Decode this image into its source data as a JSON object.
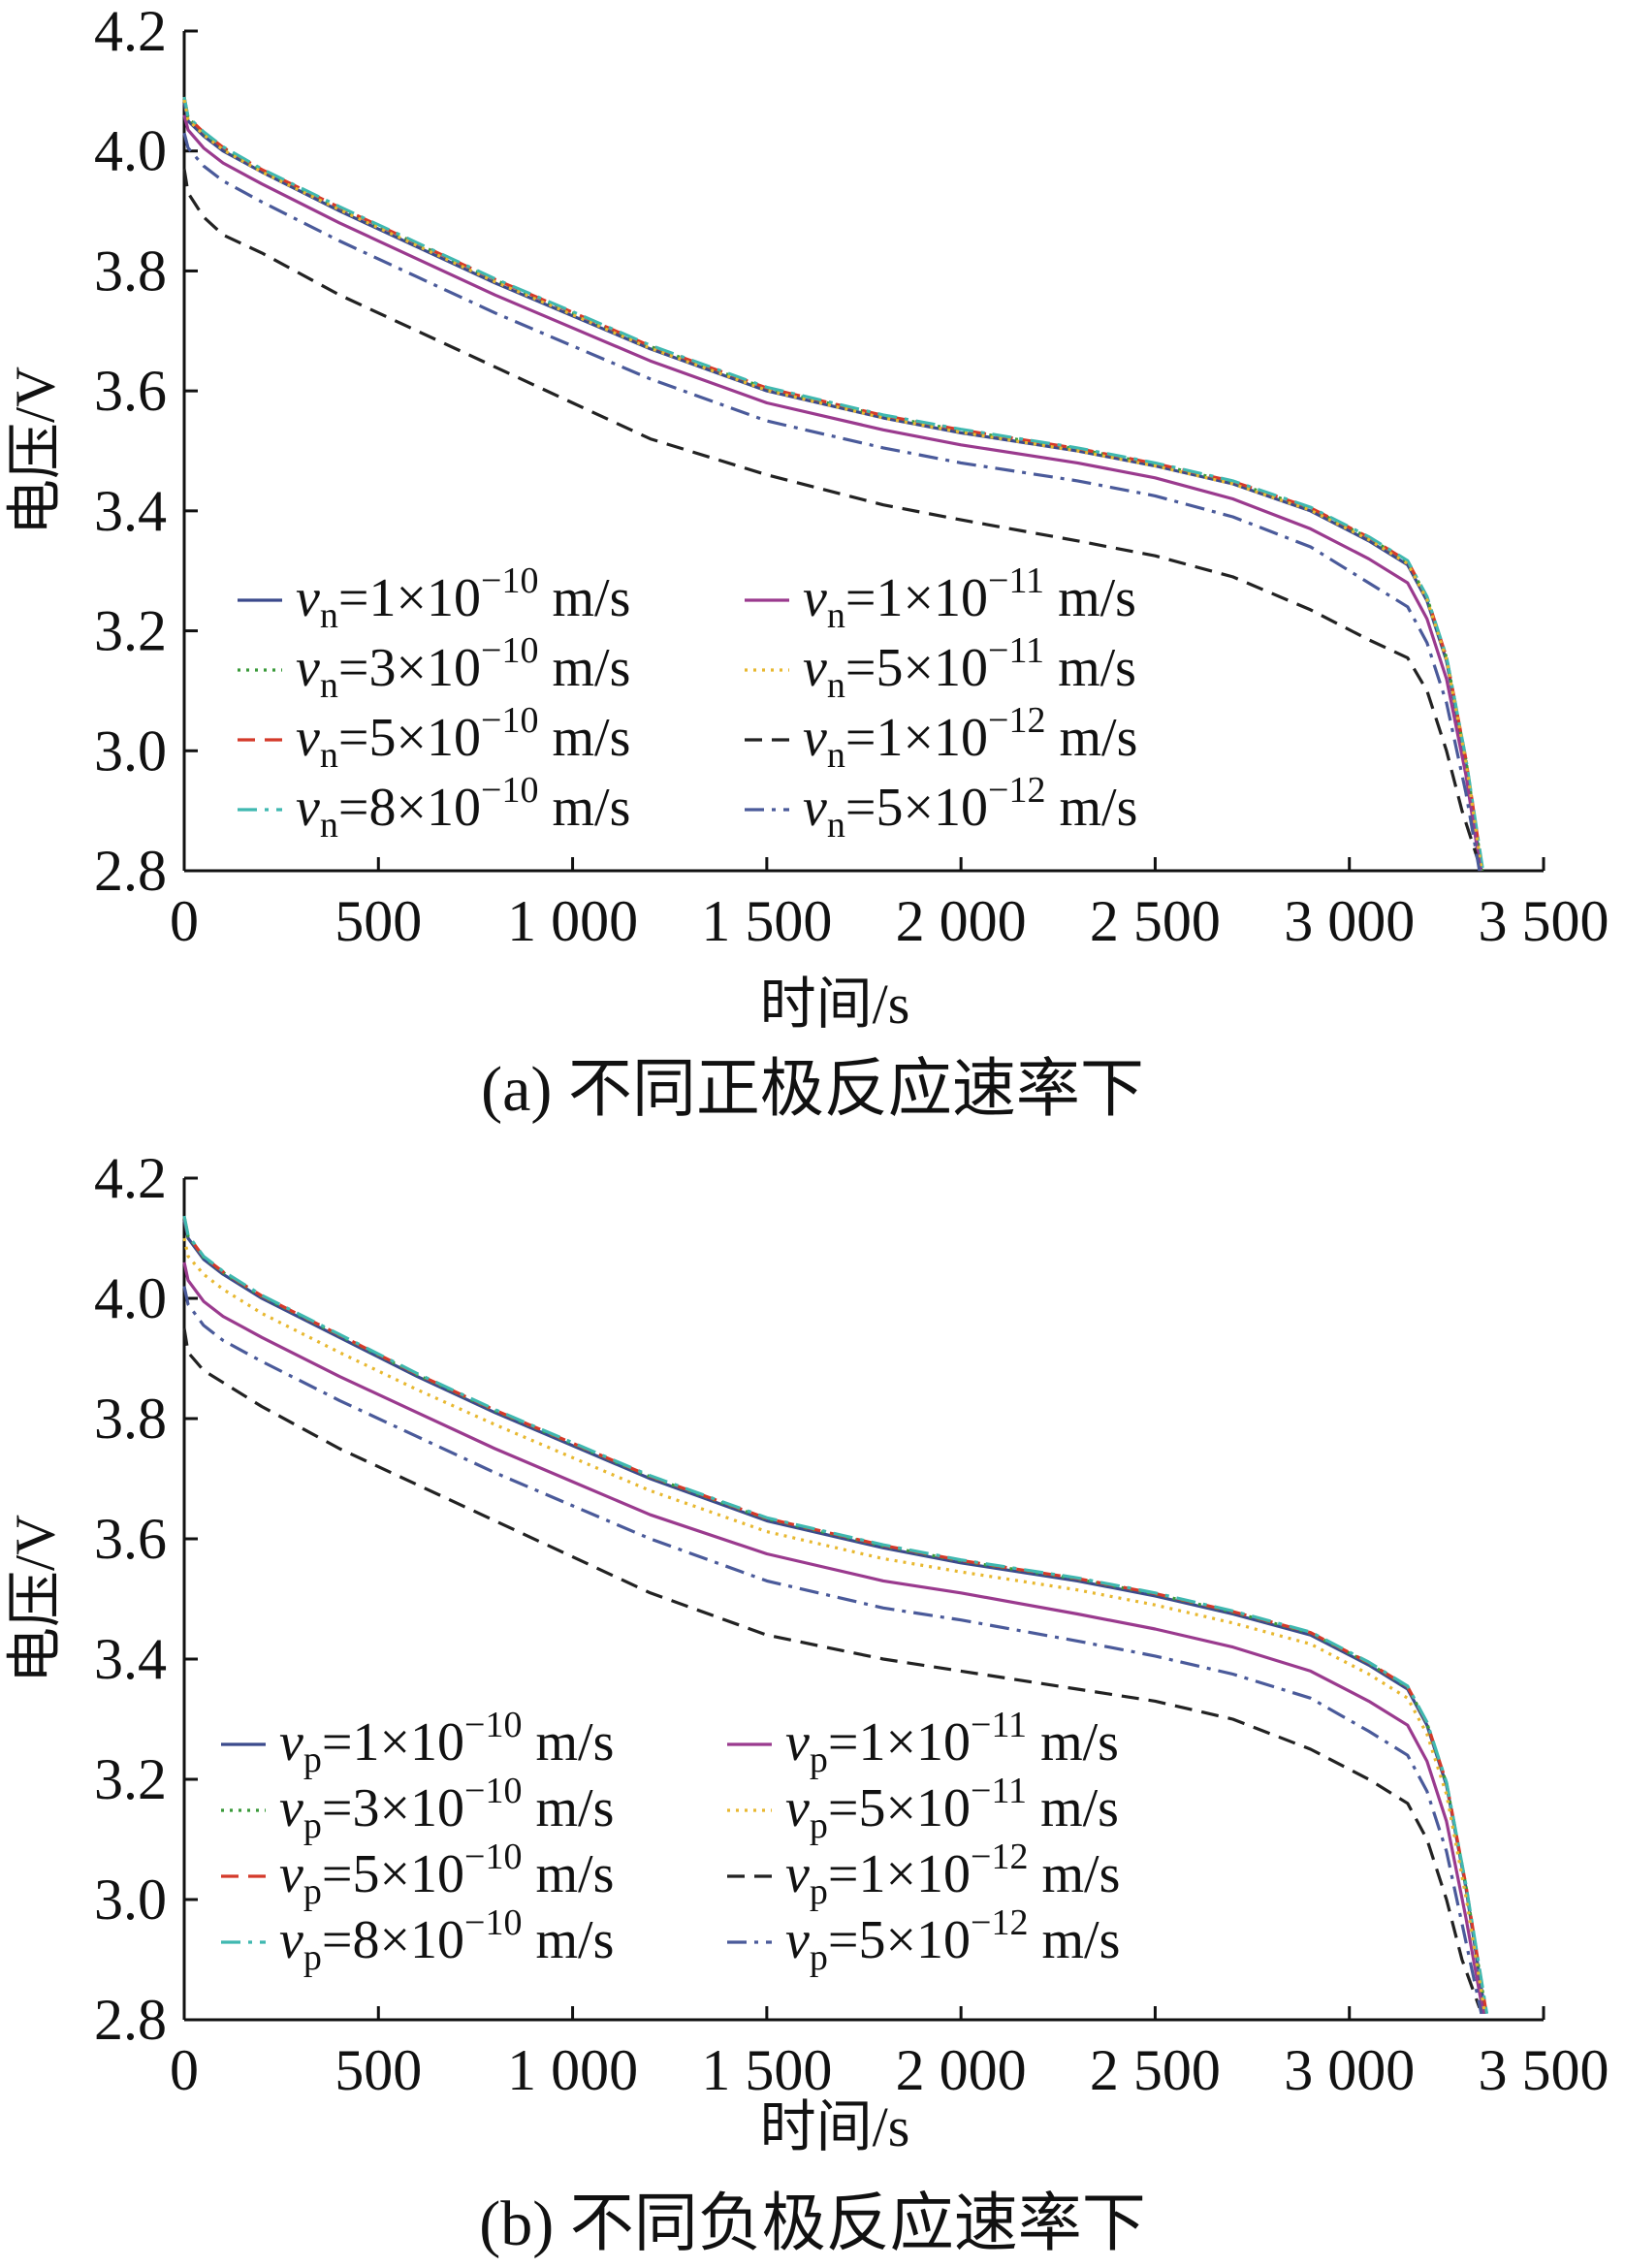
{
  "chart_data": [
    {
      "type": "line",
      "caption": "(a)  不同正极反应速率下",
      "xlabel": "时间/s",
      "ylabel": "电压/V",
      "xlim": [
        0,
        3500
      ],
      "ylim": [
        2.8,
        4.2
      ],
      "xticks": [
        0,
        500,
        1000,
        1500,
        2000,
        2500,
        3000,
        3500
      ],
      "xtick_labels": [
        "0",
        "500",
        "1 000",
        "1 500",
        "2 000",
        "2 500",
        "3 000",
        "3 500"
      ],
      "yticks": [
        2.8,
        3.0,
        3.2,
        3.4,
        3.6,
        3.8,
        4.0,
        4.2
      ],
      "ytick_labels": [
        "2.8",
        "3.0",
        "3.2",
        "3.4",
        "3.6",
        "3.8",
        "4.0",
        "4.2"
      ],
      "legend_position": "bottom-left",
      "series": [
        {
          "label_var": "v",
          "label_sub": "n",
          "label_coef": "=1×10",
          "label_exp": "−10",
          "label_unit": " m/s",
          "color": "#3b4a8c",
          "dash": "solid",
          "x": [
            0,
            10,
            50,
            100,
            200,
            400,
            600,
            800,
            1000,
            1200,
            1500,
            1800,
            2000,
            2300,
            2500,
            2700,
            2900,
            3050,
            3150,
            3200,
            3250,
            3300,
            3340
          ],
          "y": [
            4.08,
            4.05,
            4.025,
            4.0,
            3.965,
            3.9,
            3.84,
            3.78,
            3.725,
            3.67,
            3.6,
            3.555,
            3.53,
            3.5,
            3.475,
            3.445,
            3.4,
            3.35,
            3.31,
            3.25,
            3.15,
            2.98,
            2.8
          ]
        },
        {
          "label_var": "v",
          "label_sub": "n",
          "label_coef": "=3×10",
          "label_exp": "−10",
          "label_unit": " m/s",
          "color": "#3a9a3a",
          "dash": "dotted",
          "x": [
            0,
            10,
            50,
            100,
            200,
            400,
            600,
            800,
            1000,
            1200,
            1500,
            1800,
            2000,
            2300,
            2500,
            2700,
            2900,
            3050,
            3150,
            3200,
            3250,
            3300,
            3342
          ],
          "y": [
            4.09,
            4.055,
            4.03,
            4.005,
            3.968,
            3.905,
            3.845,
            3.785,
            3.73,
            3.674,
            3.604,
            3.558,
            3.534,
            3.503,
            3.478,
            3.448,
            3.404,
            3.355,
            3.315,
            3.255,
            3.155,
            2.985,
            2.8
          ]
        },
        {
          "label_var": "v",
          "label_sub": "n",
          "label_coef": "=5×10",
          "label_exp": "−10",
          "label_unit": " m/s",
          "color": "#d43a2a",
          "dash": "dashed",
          "x": [
            0,
            10,
            50,
            100,
            200,
            400,
            600,
            800,
            1000,
            1200,
            1500,
            1800,
            2000,
            2300,
            2500,
            2700,
            2900,
            3050,
            3150,
            3200,
            3250,
            3300,
            3343
          ],
          "y": [
            4.09,
            4.056,
            4.031,
            4.006,
            3.969,
            3.906,
            3.846,
            3.786,
            3.731,
            3.675,
            3.605,
            3.559,
            3.535,
            3.504,
            3.479,
            3.449,
            3.405,
            3.356,
            3.316,
            3.256,
            3.156,
            2.986,
            2.8
          ]
        },
        {
          "label_var": "v",
          "label_sub": "n",
          "label_coef": "=8×10",
          "label_exp": "−10",
          "label_unit": " m/s",
          "color": "#3fb8b0",
          "dash": "dashdot",
          "x": [
            0,
            10,
            50,
            100,
            200,
            400,
            600,
            800,
            1000,
            1200,
            1500,
            1800,
            2000,
            2300,
            2500,
            2700,
            2900,
            3050,
            3150,
            3200,
            3250,
            3300,
            3344
          ],
          "y": [
            4.09,
            4.057,
            4.032,
            4.007,
            3.97,
            3.907,
            3.847,
            3.787,
            3.732,
            3.676,
            3.606,
            3.56,
            3.536,
            3.505,
            3.48,
            3.45,
            3.406,
            3.357,
            3.317,
            3.257,
            3.157,
            2.987,
            2.8
          ]
        },
        {
          "label_var": "v",
          "label_sub": "n",
          "label_coef": "=1×10",
          "label_exp": "−11",
          "label_unit": " m/s",
          "color": "#9a3a8e",
          "dash": "solid",
          "x": [
            0,
            10,
            50,
            100,
            200,
            400,
            600,
            800,
            1000,
            1200,
            1500,
            1800,
            2000,
            2300,
            2500,
            2700,
            2900,
            3050,
            3150,
            3200,
            3250,
            3300,
            3338
          ],
          "y": [
            4.06,
            4.035,
            4.005,
            3.98,
            3.945,
            3.88,
            3.82,
            3.76,
            3.705,
            3.65,
            3.58,
            3.535,
            3.51,
            3.48,
            3.455,
            3.42,
            3.37,
            3.32,
            3.28,
            3.22,
            3.12,
            2.96,
            2.8
          ]
        },
        {
          "label_var": "v",
          "label_sub": "n",
          "label_coef": "=5×10",
          "label_exp": "−11",
          "label_unit": " m/s",
          "color": "#e8b830",
          "dash": "dotted",
          "x": [
            0,
            10,
            50,
            100,
            200,
            400,
            600,
            800,
            1000,
            1200,
            1500,
            1800,
            2000,
            2300,
            2500,
            2700,
            2900,
            3050,
            3150,
            3200,
            3250,
            3300,
            3341
          ],
          "y": [
            4.085,
            4.052,
            4.027,
            4.002,
            3.965,
            3.902,
            3.842,
            3.782,
            3.727,
            3.671,
            3.601,
            3.555,
            3.531,
            3.5,
            3.475,
            3.445,
            3.401,
            3.352,
            3.312,
            3.252,
            3.152,
            2.982,
            2.8
          ]
        },
        {
          "label_var": "v",
          "label_sub": "n",
          "label_coef": "=1×10",
          "label_exp": "−12",
          "label_unit": " m/s",
          "color": "#222222",
          "dash": "dashed",
          "x": [
            0,
            10,
            50,
            100,
            200,
            400,
            600,
            800,
            1000,
            1200,
            1500,
            1800,
            2000,
            2300,
            2500,
            2700,
            2900,
            3050,
            3150,
            3200,
            3250,
            3290,
            3330
          ],
          "y": [
            3.97,
            3.93,
            3.89,
            3.86,
            3.83,
            3.76,
            3.7,
            3.64,
            3.58,
            3.52,
            3.46,
            3.41,
            3.385,
            3.35,
            3.325,
            3.29,
            3.235,
            3.185,
            3.155,
            3.1,
            3.0,
            2.9,
            2.82
          ]
        },
        {
          "label_var": "v",
          "label_sub": "n",
          "label_coef": "=5×10",
          "label_exp": "−12",
          "label_unit": " m/s",
          "color": "#4a5a9a",
          "dash": "dashdot",
          "x": [
            0,
            10,
            50,
            100,
            200,
            400,
            600,
            800,
            1000,
            1200,
            1500,
            1800,
            2000,
            2300,
            2500,
            2700,
            2900,
            3050,
            3150,
            3200,
            3250,
            3300,
            3335
          ],
          "y": [
            4.03,
            4.005,
            3.975,
            3.95,
            3.915,
            3.85,
            3.79,
            3.73,
            3.675,
            3.62,
            3.55,
            3.505,
            3.48,
            3.45,
            3.425,
            3.39,
            3.34,
            3.28,
            3.24,
            3.18,
            3.08,
            2.93,
            2.8
          ]
        }
      ]
    },
    {
      "type": "line",
      "caption": "(b)  不同负极反应速率下",
      "xlabel": "时间/s",
      "ylabel": "电压/V",
      "xlim": [
        0,
        3500
      ],
      "ylim": [
        2.8,
        4.2
      ],
      "xticks": [
        0,
        500,
        1000,
        1500,
        2000,
        2500,
        3000,
        3500
      ],
      "xtick_labels": [
        "0",
        "500",
        "1 000",
        "1 500",
        "2 000",
        "2 500",
        "3 000",
        "3 500"
      ],
      "yticks": [
        2.8,
        3.0,
        3.2,
        3.4,
        3.6,
        3.8,
        4.0,
        4.2
      ],
      "ytick_labels": [
        "2.8",
        "3.0",
        "3.2",
        "3.4",
        "3.6",
        "3.8",
        "4.0",
        "4.2"
      ],
      "legend_position": "bottom-left",
      "series": [
        {
          "label_var": "v",
          "label_sub": "p",
          "label_coef": "=1×10",
          "label_exp": "−10",
          "label_unit": " m/s",
          "color": "#3b4a8c",
          "dash": "solid",
          "x": [
            0,
            10,
            50,
            100,
            200,
            400,
            600,
            800,
            1000,
            1200,
            1500,
            1800,
            2000,
            2300,
            2500,
            2700,
            2900,
            3050,
            3150,
            3200,
            3250,
            3300,
            3350
          ],
          "y": [
            4.13,
            4.1,
            4.065,
            4.04,
            4.0,
            3.935,
            3.87,
            3.81,
            3.755,
            3.7,
            3.63,
            3.585,
            3.56,
            3.53,
            3.505,
            3.475,
            3.44,
            3.39,
            3.35,
            3.29,
            3.19,
            3.02,
            2.81
          ]
        },
        {
          "label_var": "v",
          "label_sub": "p",
          "label_coef": "=3×10",
          "label_exp": "−10",
          "label_unit": " m/s",
          "color": "#3a9a3a",
          "dash": "dotted",
          "x": [
            0,
            10,
            50,
            100,
            200,
            400,
            600,
            800,
            1000,
            1200,
            1500,
            1800,
            2000,
            2300,
            2500,
            2700,
            2900,
            3050,
            3150,
            3200,
            3250,
            3300,
            3352
          ],
          "y": [
            4.135,
            4.103,
            4.068,
            4.043,
            4.003,
            3.938,
            3.873,
            3.813,
            3.758,
            3.703,
            3.633,
            3.588,
            3.563,
            3.533,
            3.508,
            3.478,
            3.443,
            3.393,
            3.353,
            3.293,
            3.193,
            3.023,
            2.81
          ]
        },
        {
          "label_var": "v",
          "label_sub": "p",
          "label_coef": "=5×10",
          "label_exp": "−10",
          "label_unit": " m/s",
          "color": "#d43a2a",
          "dash": "dashed",
          "x": [
            0,
            10,
            50,
            100,
            200,
            400,
            600,
            800,
            1000,
            1200,
            1500,
            1800,
            2000,
            2300,
            2500,
            2700,
            2900,
            3050,
            3150,
            3200,
            3250,
            3300,
            3353
          ],
          "y": [
            4.136,
            4.104,
            4.069,
            4.044,
            4.004,
            3.939,
            3.874,
            3.814,
            3.759,
            3.704,
            3.634,
            3.589,
            3.564,
            3.534,
            3.509,
            3.479,
            3.444,
            3.394,
            3.354,
            3.294,
            3.194,
            3.024,
            2.81
          ]
        },
        {
          "label_var": "v",
          "label_sub": "p",
          "label_coef": "=8×10",
          "label_exp": "−10",
          "label_unit": " m/s",
          "color": "#3fb8b0",
          "dash": "dashdot",
          "x": [
            0,
            10,
            50,
            100,
            200,
            400,
            600,
            800,
            1000,
            1200,
            1500,
            1800,
            2000,
            2300,
            2500,
            2700,
            2900,
            3050,
            3150,
            3200,
            3250,
            3300,
            3354
          ],
          "y": [
            4.137,
            4.105,
            4.07,
            4.045,
            4.005,
            3.94,
            3.875,
            3.815,
            3.76,
            3.705,
            3.635,
            3.59,
            3.565,
            3.535,
            3.51,
            3.48,
            3.445,
            3.395,
            3.355,
            3.295,
            3.195,
            3.025,
            2.81
          ]
        },
        {
          "label_var": "v",
          "label_sub": "p",
          "label_coef": "=1×10",
          "label_exp": "−11",
          "label_unit": " m/s",
          "color": "#9a3a8e",
          "dash": "solid",
          "x": [
            0,
            10,
            50,
            100,
            200,
            400,
            600,
            800,
            1000,
            1200,
            1500,
            1800,
            2000,
            2300,
            2500,
            2700,
            2900,
            3050,
            3150,
            3200,
            3250,
            3300,
            3345
          ],
          "y": [
            4.06,
            4.03,
            3.995,
            3.97,
            3.935,
            3.87,
            3.81,
            3.75,
            3.695,
            3.64,
            3.575,
            3.53,
            3.51,
            3.475,
            3.45,
            3.42,
            3.38,
            3.33,
            3.29,
            3.23,
            3.13,
            2.97,
            2.81
          ]
        },
        {
          "label_var": "v",
          "label_sub": "p",
          "label_coef": "=5×10",
          "label_exp": "−11",
          "label_unit": " m/s",
          "color": "#e8b830",
          "dash": "dotted",
          "x": [
            0,
            10,
            50,
            100,
            200,
            400,
            600,
            800,
            1000,
            1200,
            1500,
            1800,
            2000,
            2300,
            2500,
            2700,
            2900,
            3050,
            3150,
            3200,
            3250,
            3300,
            3349
          ],
          "y": [
            4.1,
            4.07,
            4.04,
            4.015,
            3.975,
            3.91,
            3.848,
            3.79,
            3.735,
            3.68,
            3.612,
            3.567,
            3.545,
            3.515,
            3.49,
            3.46,
            3.425,
            3.375,
            3.335,
            3.275,
            3.175,
            3.005,
            2.81
          ]
        },
        {
          "label_var": "v",
          "label_sub": "p",
          "label_coef": "=1×10",
          "label_exp": "−12",
          "label_unit": " m/s",
          "color": "#222222",
          "dash": "dashed",
          "x": [
            0,
            10,
            50,
            100,
            200,
            400,
            600,
            800,
            1000,
            1200,
            1500,
            1800,
            2000,
            2300,
            2500,
            2700,
            2900,
            3050,
            3150,
            3200,
            3250,
            3290,
            3335
          ],
          "y": [
            3.95,
            3.91,
            3.88,
            3.86,
            3.82,
            3.75,
            3.69,
            3.63,
            3.57,
            3.51,
            3.44,
            3.4,
            3.38,
            3.35,
            3.33,
            3.3,
            3.25,
            3.2,
            3.16,
            3.1,
            3.0,
            2.9,
            2.82
          ]
        },
        {
          "label_var": "v",
          "label_sub": "p",
          "label_coef": "=5×10",
          "label_exp": "−12",
          "label_unit": " m/s",
          "color": "#4a5a9a",
          "dash": "dashdot",
          "x": [
            0,
            10,
            50,
            100,
            200,
            400,
            600,
            800,
            1000,
            1200,
            1500,
            1800,
            2000,
            2300,
            2500,
            2700,
            2900,
            3050,
            3150,
            3200,
            3250,
            3300,
            3340
          ],
          "y": [
            4.02,
            3.99,
            3.955,
            3.93,
            3.895,
            3.83,
            3.77,
            3.71,
            3.655,
            3.6,
            3.53,
            3.485,
            3.465,
            3.43,
            3.405,
            3.375,
            3.335,
            3.28,
            3.24,
            3.18,
            3.08,
            2.93,
            2.81
          ]
        }
      ]
    }
  ]
}
